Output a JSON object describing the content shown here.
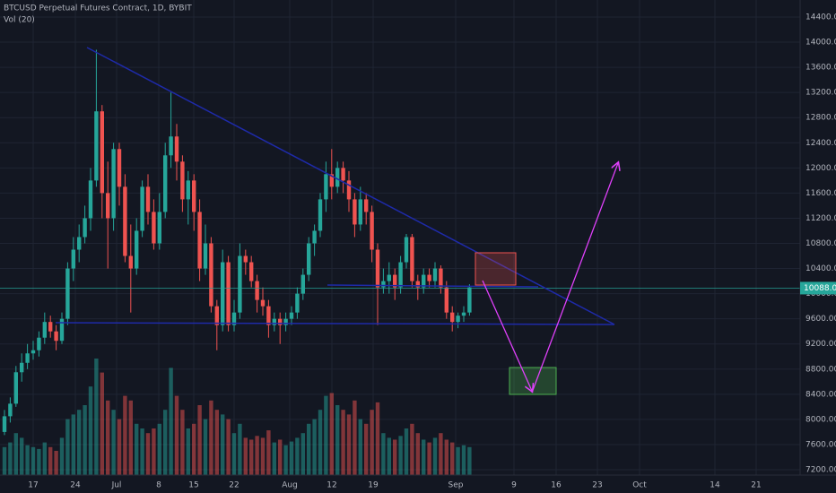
{
  "chart_data": {
    "type": "candlestick",
    "title": "BTCUSD Perpetual Futures Contract, 1D, BYBIT",
    "subtitle": "Vol (20)",
    "up_color": "#26a69a",
    "down_color": "#ef5350",
    "ylim": [
      7200,
      14400
    ],
    "yticks": [
      {
        "value": 7200,
        "label": "7200.00"
      },
      {
        "value": 7600,
        "label": "7600.00"
      },
      {
        "value": 8000,
        "label": "8000.00"
      },
      {
        "value": 8400,
        "label": "8400.00"
      },
      {
        "value": 8800,
        "label": "8800.00"
      },
      {
        "value": 9200,
        "label": "9200.00"
      },
      {
        "value": 9600,
        "label": "9600.00"
      },
      {
        "value": 10000,
        "label": "10000.00"
      },
      {
        "value": 10400,
        "label": "10400.00"
      },
      {
        "value": 10800,
        "label": "10800.00"
      },
      {
        "value": 11200,
        "label": "11200.00"
      },
      {
        "value": 11600,
        "label": "11600.00"
      },
      {
        "value": 12000,
        "label": "12000.00"
      },
      {
        "value": 12400,
        "label": "12400.00"
      },
      {
        "value": 12800,
        "label": "12800.00"
      },
      {
        "value": 13200,
        "label": "13200.00"
      },
      {
        "value": 13600,
        "label": "13600.00"
      },
      {
        "value": 14000,
        "label": "14000.00"
      },
      {
        "value": 14400,
        "label": "14400.00"
      }
    ],
    "grid": true,
    "last_price": {
      "value": 10088,
      "label": "10088.00"
    },
    "x_labels": [
      "17",
      "24",
      "Jul",
      "8",
      "15",
      "22",
      "Aug",
      "12",
      "19",
      "Sep",
      "9",
      "16",
      "23",
      "Oct",
      "14",
      "21"
    ],
    "ohlc": [
      [
        7800,
        8150,
        7750,
        8050
      ],
      [
        8050,
        8350,
        7950,
        8250
      ],
      [
        8250,
        8850,
        8200,
        8750
      ],
      [
        8750,
        9050,
        8600,
        8900
      ],
      [
        8900,
        9200,
        8800,
        9050
      ],
      [
        9050,
        9250,
        8950,
        9100
      ],
      [
        9100,
        9400,
        9000,
        9300
      ],
      [
        9300,
        9700,
        9200,
        9550
      ],
      [
        9550,
        9650,
        9300,
        9400
      ],
      [
        9400,
        9500,
        9100,
        9250
      ],
      [
        9250,
        9700,
        9200,
        9600
      ],
      [
        9600,
        10500,
        9500,
        10400
      ],
      [
        10400,
        10900,
        10200,
        10700
      ],
      [
        10700,
        11100,
        10500,
        10900
      ],
      [
        10900,
        11400,
        10800,
        11200
      ],
      [
        11200,
        12000,
        11000,
        11800
      ],
      [
        11800,
        13880,
        11700,
        12900
      ],
      [
        12900,
        13000,
        11200,
        11600
      ],
      [
        11600,
        12100,
        10400,
        11200
      ],
      [
        11200,
        12400,
        11000,
        12300
      ],
      [
        12300,
        12400,
        11400,
        11700
      ],
      [
        11700,
        11900,
        10500,
        10600
      ],
      [
        10600,
        11100,
        9700,
        10400
      ],
      [
        10400,
        11200,
        10300,
        11000
      ],
      [
        11000,
        11800,
        10900,
        11700
      ],
      [
        11700,
        11900,
        11100,
        11300
      ],
      [
        11300,
        11500,
        10700,
        10800
      ],
      [
        10800,
        11600,
        10700,
        11300
      ],
      [
        11300,
        12400,
        11200,
        12200
      ],
      [
        12200,
        13200,
        12000,
        12500
      ],
      [
        12500,
        12700,
        11800,
        12100
      ],
      [
        12100,
        12200,
        11300,
        11500
      ],
      [
        11500,
        11950,
        11100,
        11800
      ],
      [
        11800,
        11900,
        11000,
        11300
      ],
      [
        11300,
        11500,
        10200,
        10400
      ],
      [
        10400,
        11100,
        10300,
        10800
      ],
      [
        10800,
        10900,
        9700,
        9800
      ],
      [
        9800,
        9900,
        9100,
        9500
      ],
      [
        9500,
        10700,
        9400,
        10500
      ],
      [
        10500,
        10600,
        9400,
        9500
      ],
      [
        9500,
        9900,
        9400,
        9700
      ],
      [
        9700,
        10800,
        9600,
        10600
      ],
      [
        10600,
        10700,
        10300,
        10500
      ],
      [
        10500,
        10600,
        10100,
        10200
      ],
      [
        10200,
        10300,
        9700,
        9900
      ],
      [
        9900,
        10100,
        9650,
        9800
      ],
      [
        9800,
        9900,
        9300,
        9500
      ],
      [
        9500,
        9700,
        9400,
        9600
      ],
      [
        9600,
        9700,
        9200,
        9500
      ],
      [
        9500,
        9700,
        9400,
        9600
      ],
      [
        9600,
        9800,
        9500,
        9700
      ],
      [
        9700,
        10100,
        9600,
        10000
      ],
      [
        10000,
        10400,
        9900,
        10300
      ],
      [
        10300,
        10900,
        10200,
        10800
      ],
      [
        10800,
        11100,
        10600,
        11000
      ],
      [
        11000,
        11600,
        10900,
        11500
      ],
      [
        11500,
        12100,
        11300,
        11900
      ],
      [
        11900,
        12300,
        11500,
        11700
      ],
      [
        11700,
        12100,
        11600,
        12000
      ],
      [
        12000,
        12100,
        11600,
        11800
      ],
      [
        11800,
        11950,
        11300,
        11500
      ],
      [
        11500,
        11600,
        10900,
        11100
      ],
      [
        11100,
        11700,
        11000,
        11500
      ],
      [
        11500,
        11600,
        11100,
        11300
      ],
      [
        11300,
        11400,
        10500,
        10700
      ],
      [
        10700,
        10800,
        9500,
        10100
      ],
      [
        10100,
        10400,
        10000,
        10200
      ],
      [
        10200,
        10500,
        10000,
        10300
      ],
      [
        10300,
        10400,
        9900,
        10100
      ],
      [
        10100,
        10600,
        10000,
        10500
      ],
      [
        10500,
        10950,
        10400,
        10900
      ],
      [
        10900,
        10950,
        10100,
        10200
      ],
      [
        10200,
        10300,
        9900,
        10100
      ],
      [
        10100,
        10400,
        10000,
        10300
      ],
      [
        10300,
        10400,
        10100,
        10200
      ],
      [
        10200,
        10500,
        10100,
        10400
      ],
      [
        10400,
        10450,
        10000,
        10100
      ],
      [
        10100,
        10200,
        9600,
        9700
      ],
      [
        9700,
        9800,
        9400,
        9550
      ],
      [
        9550,
        9700,
        9450,
        9650
      ],
      [
        9650,
        9800,
        9550,
        9700
      ],
      [
        9700,
        10150,
        9650,
        10100
      ]
    ],
    "volume": [
      30,
      35,
      45,
      40,
      32,
      30,
      28,
      35,
      30,
      26,
      40,
      60,
      65,
      70,
      75,
      95,
      125,
      110,
      80,
      70,
      60,
      85,
      80,
      55,
      50,
      45,
      50,
      55,
      70,
      115,
      85,
      70,
      50,
      55,
      75,
      60,
      80,
      70,
      65,
      60,
      45,
      55,
      40,
      38,
      42,
      40,
      48,
      35,
      38,
      32,
      36,
      40,
      45,
      55,
      60,
      70,
      85,
      88,
      75,
      70,
      65,
      80,
      60,
      55,
      70,
      78,
      45,
      40,
      38,
      42,
      50,
      55,
      45,
      38,
      35,
      40,
      45,
      38,
      35,
      30,
      32,
      30
    ]
  }
}
